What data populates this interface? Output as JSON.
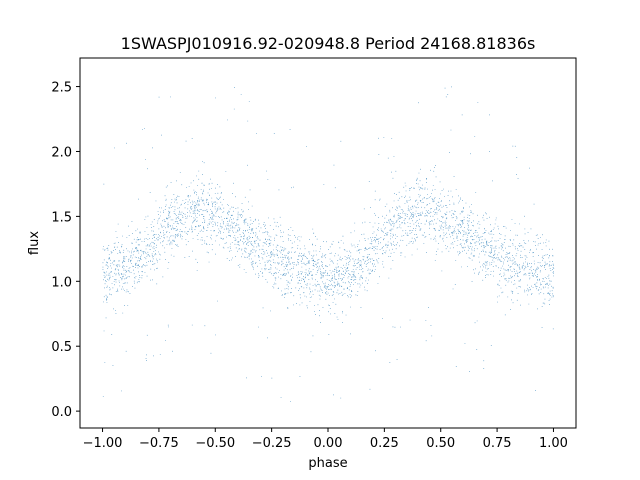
{
  "chart_data": {
    "type": "scatter",
    "title": "1SWASPJ010916.92-020948.8 Period 24168.81836s",
    "xlabel": "phase",
    "ylabel": "flux",
    "xlim": [
      -1.1,
      1.1
    ],
    "ylim": [
      -0.13,
      2.72
    ],
    "x_ticks": [
      -1.0,
      -0.75,
      -0.5,
      -0.25,
      0.0,
      0.25,
      0.5,
      0.75,
      1.0
    ],
    "x_tick_labels": [
      "−1.00",
      "−0.75",
      "−0.50",
      "−0.25",
      "0.00",
      "0.25",
      "0.50",
      "0.75",
      "1.00"
    ],
    "y_ticks": [
      0.0,
      0.5,
      1.0,
      1.5,
      2.0,
      2.5
    ],
    "y_tick_labels": [
      "0.0",
      "0.5",
      "1.0",
      "1.5",
      "2.0",
      "2.5"
    ],
    "grid": false,
    "legend": "none",
    "marker_color": "#1f77b4",
    "phase_range": [
      -1.0,
      1.0
    ],
    "trend": {
      "x": [
        -1.0,
        -0.9,
        -0.8,
        -0.7,
        -0.6,
        -0.5,
        -0.4,
        -0.3,
        -0.2,
        -0.1,
        0.0,
        0.1,
        0.2,
        0.3,
        0.4,
        0.5,
        0.6,
        0.7,
        0.8,
        0.9,
        1.0
      ],
      "y": [
        1.05,
        1.1,
        1.25,
        1.45,
        1.55,
        1.5,
        1.38,
        1.25,
        1.15,
        1.08,
        1.03,
        1.05,
        1.25,
        1.45,
        1.55,
        1.5,
        1.38,
        1.25,
        1.15,
        1.08,
        1.05
      ]
    },
    "scatter_sigma": 0.13,
    "outlier_fraction": 0.05
  }
}
